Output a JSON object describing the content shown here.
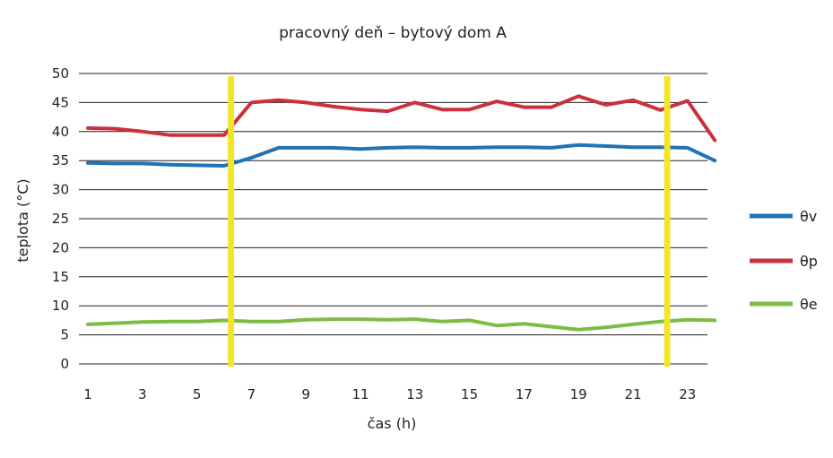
{
  "chart_data": {
    "type": "line",
    "title": "pracovný deň – bytový dom A",
    "xlabel": "čas (h)",
    "ylabel": "teplota (°C)",
    "xlim": [
      1,
      24
    ],
    "ylim": [
      0,
      50
    ],
    "x_ticks": [
      1,
      3,
      5,
      7,
      9,
      11,
      13,
      15,
      17,
      19,
      21,
      23
    ],
    "y_ticks": [
      0,
      5,
      10,
      15,
      20,
      25,
      30,
      35,
      40,
      45,
      50
    ],
    "grid": true,
    "legend_position": "right",
    "x": [
      1,
      2,
      3,
      4,
      5,
      6,
      7,
      8,
      9,
      10,
      11,
      12,
      13,
      14,
      15,
      16,
      17,
      18,
      19,
      20,
      21,
      22,
      23,
      24
    ],
    "series": [
      {
        "name": "θv",
        "color": "#1f73b7",
        "values": [
          34.6,
          34.5,
          34.5,
          34.3,
          34.2,
          34.1,
          35.5,
          37.2,
          37.2,
          37.2,
          37.0,
          37.2,
          37.3,
          37.2,
          37.2,
          37.3,
          37.3,
          37.2,
          37.7,
          37.5,
          37.3,
          37.3,
          37.2,
          35.0
        ]
      },
      {
        "name": "θp",
        "color": "#cc2f3d",
        "values": [
          40.6,
          40.5,
          40.0,
          39.4,
          39.4,
          39.4,
          45.0,
          45.4,
          45.0,
          44.3,
          43.8,
          43.5,
          45.0,
          43.8,
          43.8,
          45.2,
          44.2,
          44.2,
          46.1,
          44.6,
          45.4,
          43.7,
          45.3,
          38.5
        ]
      },
      {
        "name": "θe",
        "color": "#7cbc42",
        "values": [
          6.8,
          7.0,
          7.2,
          7.3,
          7.3,
          7.5,
          7.3,
          7.3,
          7.6,
          7.7,
          7.7,
          7.6,
          7.7,
          7.3,
          7.5,
          6.6,
          6.9,
          6.4,
          5.9,
          6.3,
          6.8,
          7.3,
          7.6,
          7.5
        ]
      }
    ],
    "vertical_markers": {
      "color": "#f2e62a",
      "x": [
        6.25,
        22.25
      ]
    }
  }
}
